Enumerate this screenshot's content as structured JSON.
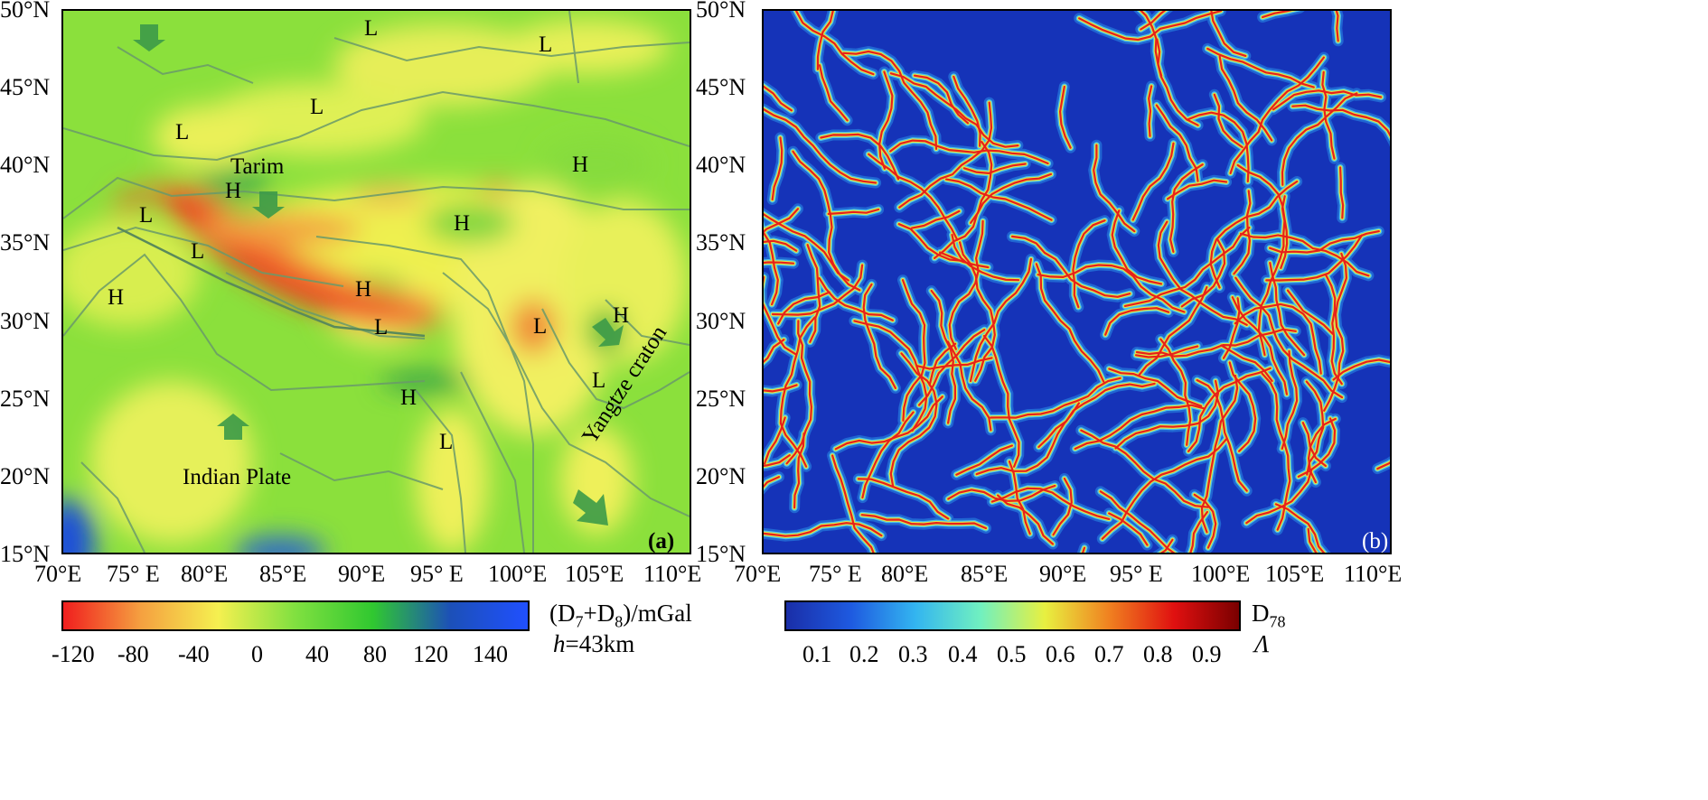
{
  "panel_a": {
    "tag": "(a)",
    "lat_labels": [
      "50°N",
      "45°N",
      "40°N",
      "35°N",
      "30°N",
      "25°N",
      "20°N",
      "15°N"
    ],
    "lon_labels": [
      "70°E",
      "75° E",
      "80°E",
      "85°E",
      "90°E",
      "95° E",
      "100°E",
      "105°E",
      "110°E"
    ],
    "labels": {
      "tarim": "Tarim",
      "indian_plate": "Indian Plate",
      "yangtze": "Yangtze craton",
      "L": "L",
      "H": "H"
    },
    "colorbar": {
      "title": "(D7+D8)/mGal",
      "title_prefix": "(D",
      "sub1": "7",
      "plus": "+D",
      "sub2": "8",
      "unit": ")/mGal",
      "height_label": "h=43km",
      "h_italic": "h",
      "h_rest": "=43km",
      "ticks": [
        "-120",
        "-80",
        "-40",
        "0",
        "40",
        "80",
        "120",
        "140"
      ],
      "colors": [
        "#f01e1e",
        "#f5a040",
        "#f5f050",
        "#80e040",
        "#30c830",
        "#1c50b8",
        "#2050ff"
      ]
    }
  },
  "panel_b": {
    "tag": "(b)",
    "lat_labels": [
      "50°N",
      "45°N",
      "40°N",
      "35°N",
      "30°N",
      "25°N",
      "20°N",
      "15°N"
    ],
    "lon_labels": [
      "70°E",
      "75° E",
      "80°E",
      "85°E",
      "90°E",
      "95° E",
      "100°E",
      "105°E",
      "110°E"
    ],
    "colorbar": {
      "title_main": "D",
      "title_sub": "78",
      "symbol": "Λ",
      "ticks": [
        "0.1",
        "0.2",
        "0.3",
        "0.4",
        "0.5",
        "0.6",
        "0.7",
        "0.8",
        "0.9"
      ],
      "colors": [
        "#1a2ea8",
        "#1e5ae0",
        "#33b5f0",
        "#70f0c0",
        "#e8f040",
        "#f08020",
        "#e01010",
        "#7a0000"
      ]
    }
  }
}
